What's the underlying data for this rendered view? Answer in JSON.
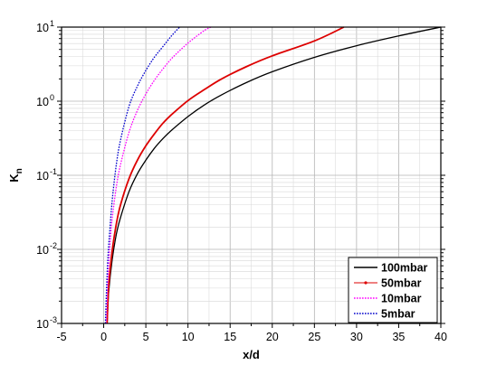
{
  "chart_data": {
    "type": "line",
    "title": "",
    "xlabel": "x/d",
    "ylabel": {
      "main": "K",
      "sub": "n"
    },
    "x_range": [
      -5,
      40
    ],
    "x_ticks": [
      -5,
      0,
      5,
      10,
      15,
      20,
      25,
      30,
      35,
      40
    ],
    "x_tick_labels": [
      "-5",
      "0",
      "5",
      "10",
      "15",
      "20",
      "25",
      "30",
      "35",
      "40"
    ],
    "y_scale": "log",
    "y_range": [
      0.001,
      10
    ],
    "y_ticks": [
      {
        "value": 0.001,
        "base": "10",
        "exp": "-3"
      },
      {
        "value": 0.01,
        "base": "10",
        "exp": "-2"
      },
      {
        "value": 0.1,
        "base": "10",
        "exp": "-1"
      },
      {
        "value": 1,
        "base": "10",
        "exp": "0"
      },
      {
        "value": 10,
        "base": "10",
        "exp": "1"
      }
    ],
    "grid": true,
    "legend_position": "bottom-right",
    "series": [
      {
        "name": "100mbar",
        "color": "#000000",
        "style": "solid",
        "x": [
          0.4,
          0.6,
          1,
          1.5,
          2,
          3,
          4,
          5,
          6,
          7,
          8,
          10,
          12,
          14,
          17,
          20,
          25,
          30,
          35,
          40
        ],
        "y": [
          0.001,
          0.0027,
          0.0072,
          0.016,
          0.027,
          0.06,
          0.105,
          0.16,
          0.23,
          0.31,
          0.4,
          0.62,
          0.9,
          1.22,
          1.8,
          2.5,
          3.9,
          5.6,
          7.6,
          10
        ]
      },
      {
        "name": "50mbar",
        "color": "#dd0000",
        "style": "solid",
        "x": [
          0.4,
          0.6,
          1,
          1.5,
          2,
          3,
          4,
          5,
          6,
          7,
          8,
          10,
          12,
          14,
          17,
          20,
          25,
          28.5
        ],
        "y": [
          0.001,
          0.0033,
          0.0095,
          0.022,
          0.04,
          0.09,
          0.16,
          0.25,
          0.36,
          0.5,
          0.65,
          1.02,
          1.45,
          2.0,
          2.95,
          4.1,
          6.5,
          10
        ]
      },
      {
        "name": "10mbar",
        "color": "#ff00ff",
        "style": "dotted",
        "x": [
          0.3,
          0.5,
          0.8,
          1,
          1.5,
          2,
          3,
          4,
          5,
          6,
          7,
          8,
          9,
          10,
          11,
          12,
          12.7
        ],
        "y": [
          0.001,
          0.004,
          0.014,
          0.026,
          0.07,
          0.14,
          0.38,
          0.75,
          1.25,
          1.9,
          2.7,
          3.7,
          4.8,
          6.1,
          7.5,
          9.1,
          10
        ]
      },
      {
        "name": "5mbar",
        "color": "#0000cc",
        "style": "dotted",
        "x": [
          0.2,
          0.4,
          0.6,
          1,
          1.5,
          2,
          3,
          4,
          5,
          6,
          7,
          8,
          9
        ],
        "y": [
          0.001,
          0.0045,
          0.0115,
          0.045,
          0.14,
          0.3,
          0.85,
          1.6,
          2.6,
          3.9,
          5.4,
          7.5,
          10
        ]
      }
    ]
  }
}
